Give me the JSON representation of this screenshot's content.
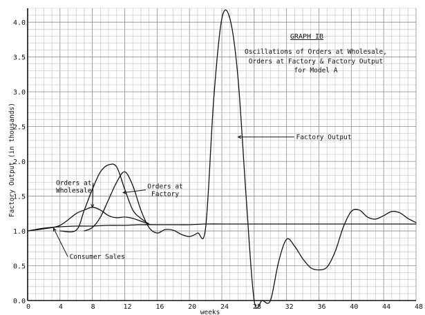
{
  "chart_data": {
    "type": "line",
    "title": "GRAPH IB",
    "subtitle": [
      "Oscillations of Orders at Wholesale,",
      "Orders at Factory & Factory Output",
      "for Model A"
    ],
    "xlabel": "weeks",
    "ylabel": "Factory Output (in thousands)",
    "xlim": [
      0,
      48
    ],
    "ylim": [
      0,
      4.2
    ],
    "xticks": [
      "0",
      "4",
      "8",
      "12",
      "16",
      "20",
      "24",
      "28",
      "32",
      "36",
      "40",
      "44",
      "48"
    ],
    "yticks": [
      "0.0",
      "0.5",
      "1.0",
      "1.5",
      "2.0",
      "2.5",
      "3.0",
      "3.5",
      "4.0"
    ],
    "series": [
      {
        "name": "Consumer Sales",
        "x": [
          0,
          2,
          4,
          6,
          8,
          10,
          12,
          14,
          16,
          18,
          20,
          22,
          24,
          26,
          28,
          30,
          32,
          36,
          40,
          44,
          48
        ],
        "y": [
          1.0,
          1.04,
          1.06,
          1.07,
          1.07,
          1.08,
          1.08,
          1.09,
          1.09,
          1.09,
          1.09,
          1.1,
          1.1,
          1.1,
          1.1,
          1.1,
          1.1,
          1.1,
          1.1,
          1.1,
          1.1
        ]
      },
      {
        "name": "Orders at Wholesale",
        "x": [
          0,
          2,
          4,
          6,
          7,
          8,
          9,
          10,
          11,
          12,
          13,
          14,
          15
        ],
        "y": [
          1.0,
          1.03,
          1.08,
          1.25,
          1.3,
          1.34,
          1.3,
          1.22,
          1.19,
          1.2,
          1.18,
          1.14,
          1.1
        ]
      },
      {
        "name": "Orders at Factory",
        "x": [
          4,
          6,
          7,
          8,
          9,
          10,
          11,
          12,
          13,
          14,
          15
        ],
        "y": [
          1.0,
          1.01,
          1.3,
          1.6,
          1.85,
          1.95,
          1.92,
          1.6,
          1.3,
          1.18,
          1.1
        ]
      },
      {
        "name": "Factory Output",
        "x": [
          7,
          8,
          9,
          10,
          11,
          12,
          13,
          14,
          15,
          16,
          17,
          18,
          19,
          20,
          21,
          22,
          23,
          24,
          25,
          26,
          27,
          28,
          29,
          30,
          31,
          32,
          33,
          34,
          35,
          36,
          37,
          38,
          39,
          40,
          41,
          42,
          43,
          44,
          45,
          46,
          47,
          48
        ],
        "y": [
          1.0,
          1.05,
          1.2,
          1.45,
          1.7,
          1.85,
          1.65,
          1.3,
          1.05,
          0.97,
          1.02,
          1.01,
          0.95,
          0.92,
          0.97,
          1.05,
          2.9,
          4.05,
          4.05,
          3.2,
          1.5,
          0.0,
          0.0,
          0.0,
          0.55,
          0.88,
          0.78,
          0.6,
          0.47,
          0.44,
          0.48,
          0.7,
          1.05,
          1.28,
          1.3,
          1.2,
          1.17,
          1.22,
          1.28,
          1.26,
          1.18,
          1.12
        ]
      }
    ],
    "annotations": [
      {
        "lines": [
          "Factory Output"
        ],
        "target": [
          26.0,
          2.35
        ],
        "text_at": [
          36.6,
          2.32
        ]
      },
      {
        "lines": [
          "Orders at",
          "Wholesale"
        ],
        "target": [
          8.0,
          1.34
        ],
        "text_at": [
          5.7,
          1.66
        ]
      },
      {
        "lines": [
          "Orders at",
          "Factory"
        ],
        "target": [
          11.8,
          1.55
        ],
        "text_at": [
          17.0,
          1.61
        ]
      },
      {
        "lines": [
          "Consumer Sales"
        ],
        "target": [
          3.2,
          1.04
        ],
        "text_at": [
          8.6,
          0.6
        ]
      }
    ],
    "grid": true
  }
}
